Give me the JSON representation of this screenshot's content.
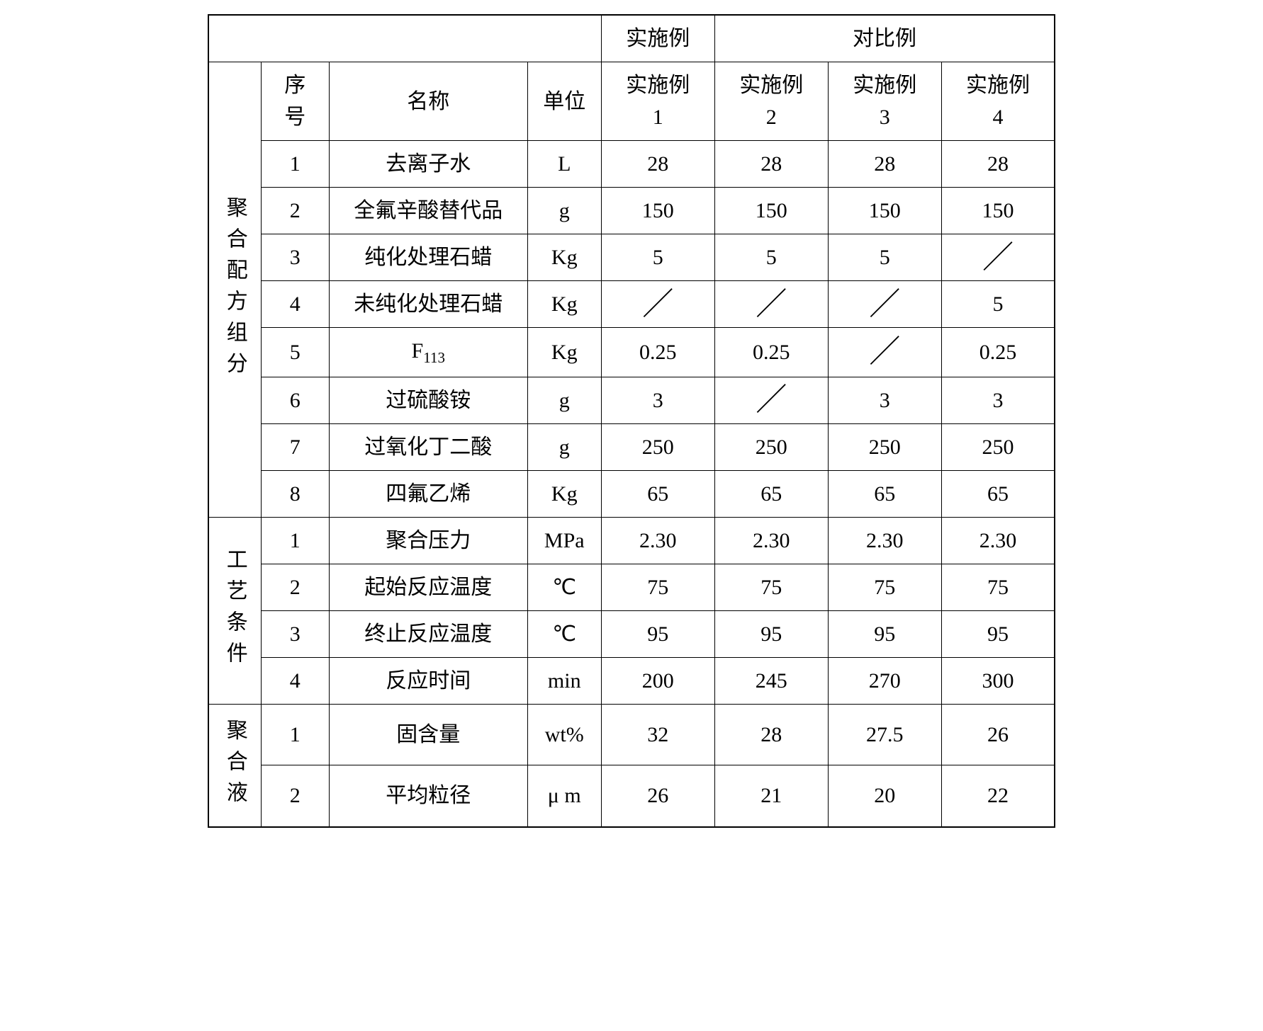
{
  "header": {
    "example": "实施例",
    "comparative": "对比例",
    "seq": "序\n号",
    "name": "名称",
    "unit": "单位",
    "ex1": "实施例\n1",
    "ex2": "实施例\n2",
    "ex3": "实施例\n3",
    "ex4": "实施例\n4"
  },
  "section1": {
    "label": "聚合配方组分",
    "rows": [
      {
        "seq": "1",
        "name": "去离子水",
        "unit": "L",
        "v": [
          "28",
          "28",
          "28",
          "28"
        ]
      },
      {
        "seq": "2",
        "name": "全氟辛酸替代品",
        "unit": "g",
        "v": [
          "150",
          "150",
          "150",
          "150"
        ]
      },
      {
        "seq": "3",
        "name": "纯化处理石蜡",
        "unit": "Kg",
        "v": [
          "5",
          "5",
          "5",
          "／"
        ]
      },
      {
        "seq": "4",
        "name": "未纯化处理石蜡",
        "unit": "Kg",
        "v": [
          "／",
          "／",
          "／",
          "5"
        ]
      },
      {
        "seq": "5",
        "name": "F113",
        "name_html": "F<sub>113</sub>",
        "unit": "Kg",
        "v": [
          "0.25",
          "0.25",
          "／",
          "0.25"
        ]
      },
      {
        "seq": "6",
        "name": "过硫酸铵",
        "unit": "g",
        "v": [
          "3",
          "／",
          "3",
          "3"
        ]
      },
      {
        "seq": "7",
        "name": "过氧化丁二酸",
        "unit": "g",
        "v": [
          "250",
          "250",
          "250",
          "250"
        ]
      },
      {
        "seq": "8",
        "name": "四氟乙烯",
        "unit": "Kg",
        "v": [
          "65",
          "65",
          "65",
          "65"
        ]
      }
    ]
  },
  "section2": {
    "label": "工艺条件",
    "rows": [
      {
        "seq": "1",
        "name": "聚合压力",
        "unit": "MPa",
        "v": [
          "2.30",
          "2.30",
          "2.30",
          "2.30"
        ]
      },
      {
        "seq": "2",
        "name": "起始反应温度",
        "unit": "℃",
        "v": [
          "75",
          "75",
          "75",
          "75"
        ]
      },
      {
        "seq": "3",
        "name": "终止反应温度",
        "unit": "℃",
        "v": [
          "95",
          "95",
          "95",
          "95"
        ]
      },
      {
        "seq": "4",
        "name": "反应时间",
        "unit": "min",
        "v": [
          "200",
          "245",
          "270",
          "300"
        ]
      }
    ]
  },
  "section3": {
    "label": "聚合液",
    "rows": [
      {
        "seq": "1",
        "name": "固含量",
        "unit": "wt%",
        "v": [
          "32",
          "28",
          "27.5",
          "26"
        ]
      },
      {
        "seq": "2",
        "name": "平均粒径",
        "unit": "μ m",
        "v": [
          "26",
          "21",
          "20",
          "22"
        ]
      }
    ]
  },
  "style": {
    "border_color": "#000000",
    "text_color": "#000000",
    "background": "#ffffff",
    "base_fontsize": 30,
    "slash_char": "／"
  }
}
